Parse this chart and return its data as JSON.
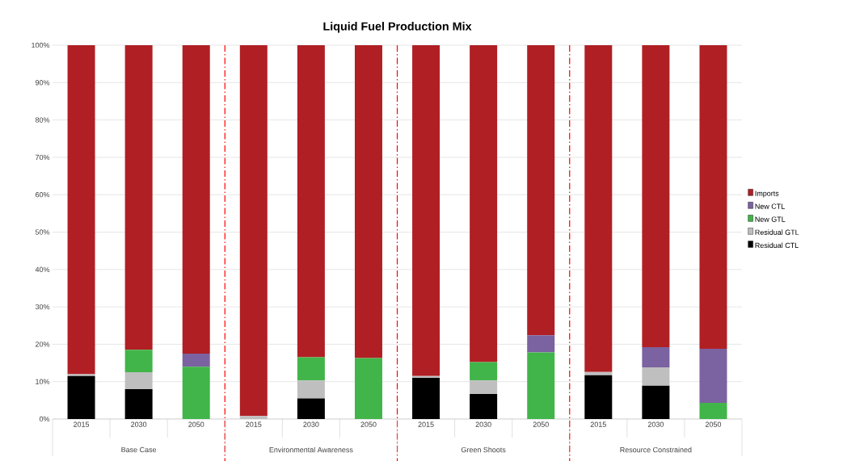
{
  "chart_data": {
    "type": "bar",
    "title": "Liquid Fuel Production Mix",
    "stacked": true,
    "grid": "y",
    "legend": "right",
    "categories": [
      "2015",
      "2030",
      "2050",
      "2015",
      "2030",
      "2050",
      "2015",
      "2030",
      "2050",
      "2015",
      "2030",
      "2050"
    ],
    "annotations": [
      "Base Case",
      "Environmental Awareness",
      "Green Shoots",
      "Resource Constrained"
    ],
    "ylim": [
      0,
      100
    ],
    "yticks": [
      {
        "value": 0,
        "label": "0%"
      },
      {
        "value": 10,
        "label": "10%"
      },
      {
        "value": 20,
        "label": "20%"
      },
      {
        "value": 30,
        "label": "30%"
      },
      {
        "value": 40,
        "label": "40%"
      },
      {
        "value": 50,
        "label": "50%"
      },
      {
        "value": 60,
        "label": "60%"
      },
      {
        "value": 70,
        "label": "70%"
      },
      {
        "value": 80,
        "label": "80%"
      },
      {
        "value": 90,
        "label": "90%"
      },
      {
        "value": 100,
        "label": "100%"
      }
    ],
    "series": [
      {
        "name": "Residual CTL",
        "color": "#000000",
        "values": [
          11.5,
          8,
          0,
          0,
          5.5,
          0,
          11,
          6.7,
          0,
          11.7,
          8.9,
          0
        ]
      },
      {
        "name": "Residual GTL",
        "color": "#bfbfbf",
        "values": [
          0.5,
          4.5,
          0,
          0.8,
          4.8,
          0,
          0.5,
          3.6,
          0,
          0.9,
          4.9,
          0
        ]
      },
      {
        "name": "New GTL",
        "color": "#41b549",
        "values": [
          0,
          6,
          14,
          0,
          6.2,
          16.3,
          0,
          4.9,
          17.8,
          0,
          0,
          4.3
        ]
      },
      {
        "name": "New CTL",
        "color": "#7b62a0",
        "values": [
          0,
          0,
          3.5,
          0,
          0,
          0,
          0,
          0,
          4.6,
          0,
          5.4,
          14.5
        ]
      },
      {
        "name": "Imports",
        "color": "#b01f24",
        "values": [
          88,
          81.5,
          82.5,
          99.2,
          83.5,
          83.7,
          88.5,
          84.8,
          77.6,
          87.4,
          80.8,
          81.2
        ]
      }
    ]
  }
}
